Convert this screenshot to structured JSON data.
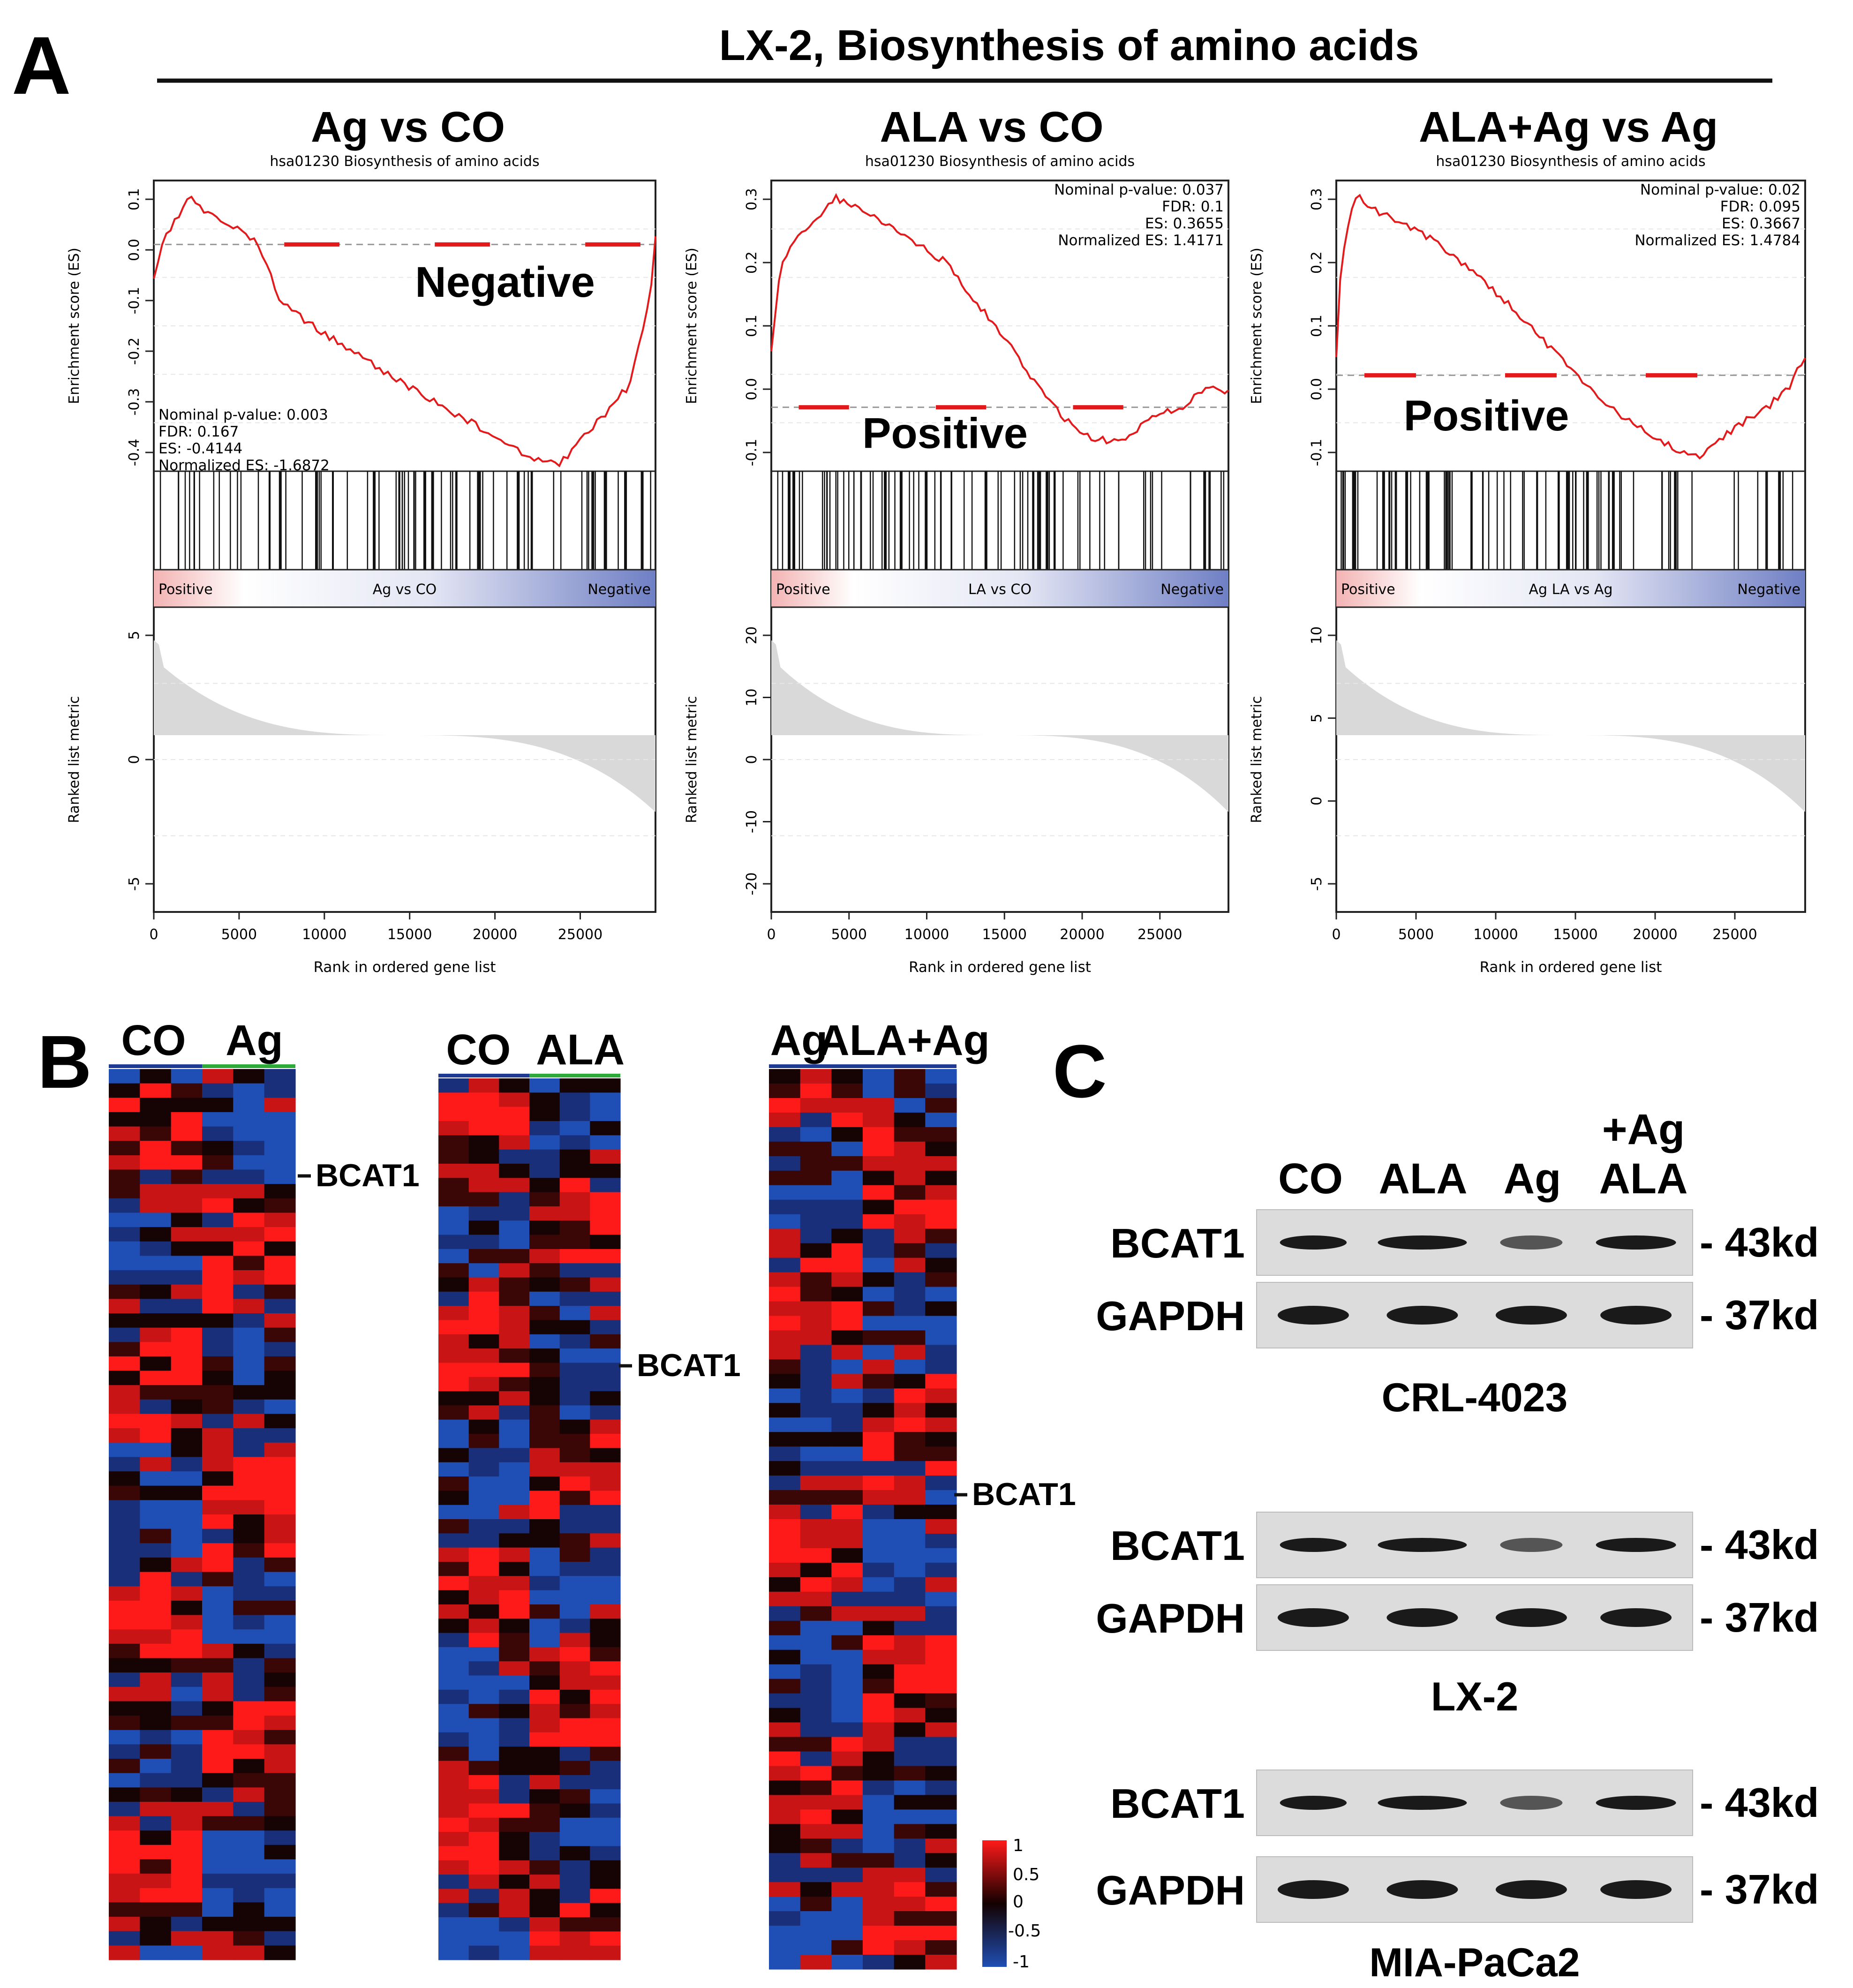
{
  "figure": {
    "panel_labels": {
      "a": "A",
      "b": "B",
      "c": "C"
    },
    "colors": {
      "es_line": "#e31a1c",
      "metric_fill": "#d9d9d9",
      "heat_red": "#ff1a1a",
      "heat_blue": "#1f4fb4",
      "heat_black": "#160404"
    }
  },
  "panel_a": {
    "title": "LX-2, Biosynthesis of amino acids",
    "common": {
      "set_title": "hsa01230 Biosynthesis of amino acids",
      "es_ylabel": "Enrichment score (ES)",
      "metric_ylabel": "Ranked list metric",
      "xlabel": "Rank in ordered gene list",
      "xticks": [
        "0",
        "5000",
        "10000",
        "15000",
        "20000",
        "25000"
      ],
      "pos_label": "Positive",
      "neg_label": "Negative"
    },
    "plots": [
      {
        "title": "Ag vs CO",
        "bar_label": "Ag vs CO",
        "stats": [
          "Nominal p-value: 0.003",
          "FDR: 0.167",
          "ES: -0.4144",
          "Normalized ES: -1.6872"
        ],
        "direction": "Negative",
        "es_yticks": [
          "0.1",
          "0.0",
          "-0.1",
          "-0.2",
          "-0.3",
          "-0.4"
        ],
        "metric_yticks": [
          "5",
          "0",
          "-5"
        ]
      },
      {
        "title": "ALA vs CO",
        "bar_label": "LA vs CO",
        "stats": [
          "Nominal p-value: 0.037",
          "FDR: 0.1",
          "ES: 0.3655",
          "Normalized ES: 1.4171"
        ],
        "direction": "Positive",
        "es_yticks": [
          "0.3",
          "0.2",
          "0.1",
          "0.0",
          "-0.1"
        ],
        "metric_yticks": [
          "20",
          "10",
          "0",
          "-10",
          "-20"
        ]
      },
      {
        "title": "ALA+Ag vs Ag",
        "bar_label": "Ag LA vs Ag",
        "stats": [
          "Nominal p-value: 0.02",
          "FDR: 0.095",
          "ES: 0.3667",
          "Normalized ES: 1.4784"
        ],
        "direction": "Positive",
        "es_yticks": [
          "0.3",
          "0.2",
          "0.1",
          "0.0",
          "-0.1"
        ],
        "metric_yticks": [
          "10",
          "5",
          "0",
          "-5"
        ]
      }
    ]
  },
  "panel_b": {
    "heatmaps": [
      {
        "group1": "CO",
        "group2": "Ag",
        "gene": "BCAT1"
      },
      {
        "group1": "CO",
        "group2": "ALA",
        "gene": "BCAT1"
      },
      {
        "group1": "Ag",
        "group2": "ALA+Ag",
        "gene": "BCAT1"
      }
    ],
    "scale": [
      "1",
      "0.5",
      "0",
      "-0.5",
      "-1"
    ]
  },
  "panel_c": {
    "lanes": [
      "CO",
      "ALA",
      "Ag"
    ],
    "lane4": [
      "+Ag",
      "ALA"
    ],
    "blots": [
      {
        "cell_line": "CRL-4023",
        "proteins": [
          {
            "name": "BCAT1",
            "size": "- 43kd"
          },
          {
            "name": "GAPDH",
            "size": "- 37kd"
          }
        ]
      },
      {
        "cell_line": "LX-2",
        "proteins": [
          {
            "name": "BCAT1",
            "size": "- 43kd"
          },
          {
            "name": "GAPDH",
            "size": "- 37kd"
          }
        ]
      },
      {
        "cell_line": "MIA-PaCa2",
        "proteins": [
          {
            "name": "BCAT1",
            "size": "- 43kd"
          },
          {
            "name": "GAPDH",
            "size": "- 37kd"
          }
        ]
      }
    ]
  }
}
